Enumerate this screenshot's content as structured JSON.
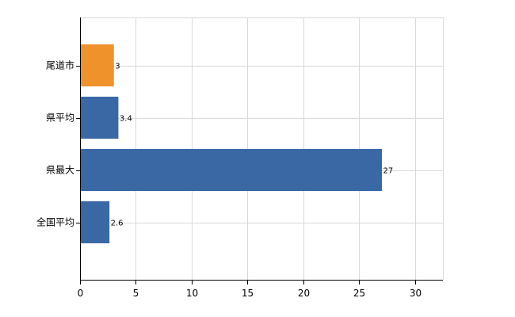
{
  "chart_data": {
    "type": "bar",
    "orientation": "horizontal",
    "title": "",
    "xlabel": "",
    "ylabel": "",
    "categories": [
      "尾道市",
      "県平均",
      "県最大",
      "全国平均"
    ],
    "values": [
      3,
      3.4,
      27,
      2.6
    ],
    "value_labels": [
      "3",
      "3.4",
      "27",
      "2.6"
    ],
    "bar_colors": [
      "#f0922b",
      "#3a68a5",
      "#3a68a5",
      "#3a68a5"
    ],
    "xlim": [
      0,
      32.5
    ],
    "x_ticks": [
      0,
      5,
      10,
      15,
      20,
      25,
      30
    ],
    "x_tick_labels": [
      "0",
      "5",
      "10",
      "15",
      "20",
      "25",
      "30"
    ],
    "grid": true,
    "legend": "none"
  }
}
